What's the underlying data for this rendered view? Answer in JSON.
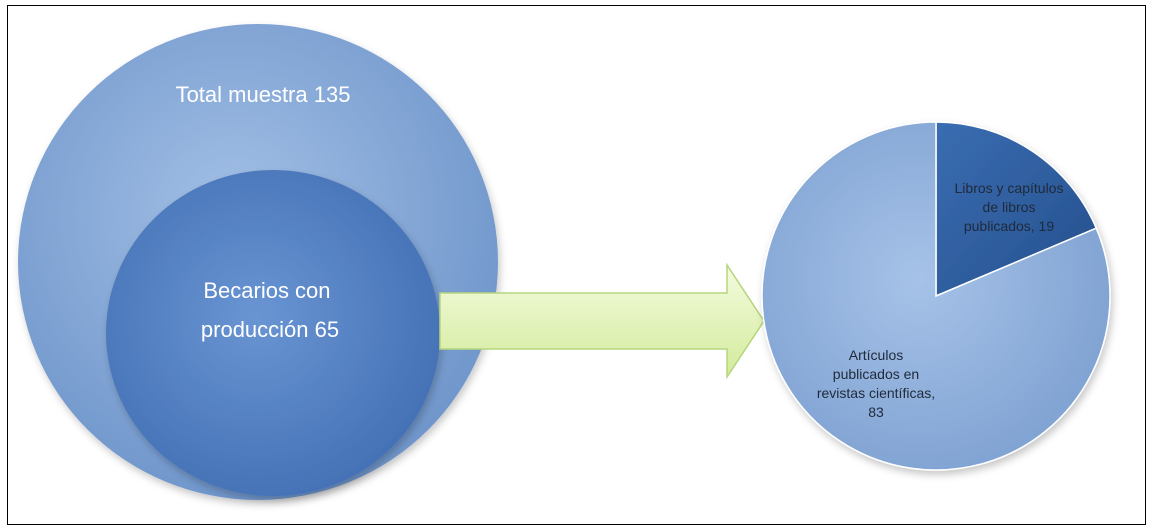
{
  "venn": {
    "outer_label": "Total muestra  135",
    "inner_label_line1": "Becarios con",
    "inner_label_line2": "producción  65"
  },
  "chart_data": {
    "type": "pie",
    "categories": [
      "Libros y capítulos de libros publicados",
      "Artículos publicados en revistas científicas"
    ],
    "values": [
      19,
      83
    ],
    "labels": [
      [
        "Libros y capítulos",
        "de libros",
        "publicados, 19"
      ],
      [
        "Artículos",
        "publicados en",
        "revistas científicas,",
        "83"
      ]
    ],
    "colors": [
      "#2e5fa3",
      "#8aaedb"
    ]
  },
  "colors": {
    "outer_circle": "#7ea4d6",
    "inner_circle": "#4f7fc6",
    "arrow": "#e2f3b5",
    "arrow_stroke": "#b5d67c",
    "frame": "#000000"
  }
}
